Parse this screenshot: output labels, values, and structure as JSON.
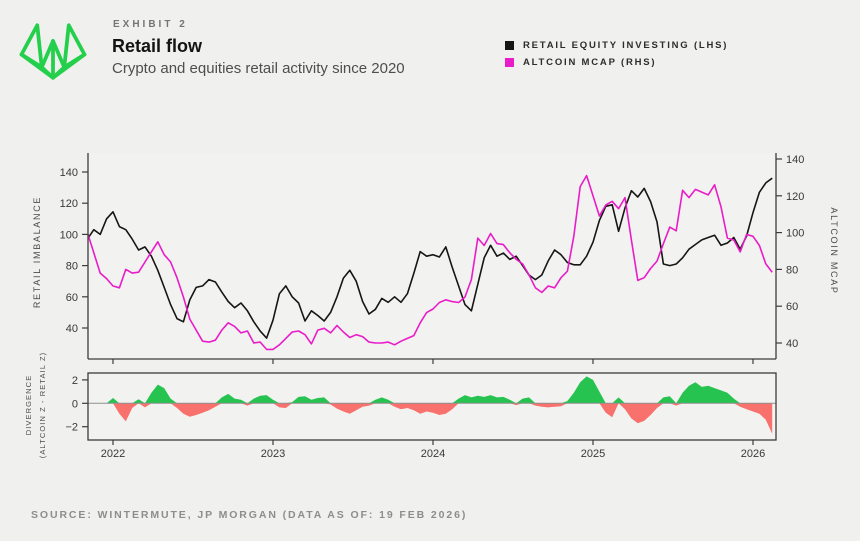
{
  "header": {
    "exhibit_label": "EXHIBIT 2",
    "title": "Retail flow",
    "subtitle": "Crypto and equities retail activity since 2020"
  },
  "legend": [
    {
      "label": "RETAIL EQUITY INVESTING (LHS)",
      "color": "#161616"
    },
    {
      "label": "ALTCOIN MCAP (RHS)",
      "color": "#e91cc9"
    }
  ],
  "source": "SOURCE: WINTERMUTE, JP MORGAN (DATA AS OF: 19 FEB 2026)",
  "logo_color": "#24d04b",
  "chart_data": [
    {
      "type": "line",
      "panel": "main",
      "x_start": 2021.84,
      "x_step": 0.04,
      "x_range": [
        2021.84,
        2026.14
      ],
      "x_ticks": [
        2022,
        2023,
        2024,
        2025,
        2026
      ],
      "left_axis": {
        "label": "RETAIL IMBALANCE",
        "ticks": [
          40,
          60,
          80,
          100,
          120,
          140
        ],
        "range": [
          22,
          152
        ]
      },
      "right_axis": {
        "label": "ALTCOIN MCAP",
        "ticks": [
          40,
          60,
          80,
          100,
          120,
          140
        ],
        "range": [
          31,
          143
        ]
      },
      "series": [
        {
          "name": "RETAIL EQUITY INVESTING (LHS)",
          "axis": "left",
          "color": "#161616",
          "values": [
            97,
            103,
            100,
            110,
            114.5,
            105,
            103,
            97,
            90,
            92,
            86,
            77,
            66,
            55,
            46,
            44,
            58,
            66,
            67,
            71,
            69.5,
            63,
            57,
            53,
            56,
            51,
            44,
            38,
            33.5,
            45,
            62,
            67,
            60,
            56,
            44.5,
            51,
            48,
            44.5,
            50,
            60,
            72,
            77,
            70,
            57,
            49,
            52,
            59,
            56.5,
            60,
            56.5,
            62,
            75,
            89,
            86,
            87,
            85.5,
            92,
            79,
            67,
            55,
            51,
            68,
            85,
            93,
            86,
            88,
            84,
            86,
            80,
            74,
            71,
            74,
            83,
            90,
            87,
            82,
            80.5,
            80.5,
            86,
            95,
            109,
            118,
            119,
            102,
            117,
            128,
            124,
            129.5,
            121,
            108,
            81,
            80,
            81,
            85,
            90.5,
            93.5,
            96.5,
            98,
            99.5,
            93,
            94.5,
            98,
            90.5,
            99,
            114,
            127,
            133,
            136
          ]
        },
        {
          "name": "ALTCOIN MCAP (RHS)",
          "axis": "right",
          "color": "#e91cc9",
          "values": [
            100,
            89,
            78,
            75,
            71,
            70,
            80,
            78,
            78.5,
            84,
            89.5,
            95,
            88,
            84,
            75.5,
            65,
            53,
            47,
            41,
            40.5,
            41.5,
            47,
            51,
            49,
            45.5,
            46.5,
            40,
            40.5,
            36.5,
            36.5,
            39,
            42.5,
            46,
            46.5,
            44.5,
            39.5,
            47,
            48,
            45.5,
            49.5,
            46,
            43,
            44.5,
            43.5,
            40.5,
            40,
            40,
            40.5,
            39,
            41,
            42.5,
            44,
            51,
            56.5,
            58.5,
            62,
            63.5,
            62.5,
            62,
            65,
            74.5,
            97,
            93,
            99.5,
            94,
            93.5,
            89,
            85.5,
            83,
            77,
            70,
            67.5,
            71,
            70,
            75.5,
            79,
            98,
            125,
            131,
            120,
            109,
            115,
            117,
            113,
            119,
            96,
            74,
            75.5,
            80.5,
            84.5,
            94,
            103,
            101,
            123,
            119,
            123.5,
            122,
            120.5,
            126,
            114,
            97,
            96,
            89.5,
            99,
            98,
            93,
            83,
            78.5
          ]
        }
      ]
    },
    {
      "type": "area",
      "panel": "divergence",
      "x_start": 2021.84,
      "x_step": 0.04,
      "x_ticks": [
        2022,
        2023,
        2024,
        2025,
        2026
      ],
      "axis": {
        "label_lines": [
          "DIVERGENCE",
          "(ALTCOIN Z - RETAIL Z)"
        ],
        "ticks": [
          2,
          0,
          -2
        ],
        "range": [
          -3.1,
          2.6
        ]
      },
      "positive_color": "#27c351",
      "negative_color": "#f8716c",
      "values": [
        0,
        0,
        0,
        0,
        0.45,
        -0.9,
        -1.55,
        -0.4,
        0.35,
        -0.35,
        0.9,
        1.6,
        1.3,
        0.4,
        -0.4,
        -0.9,
        -1.15,
        -1.0,
        -0.8,
        -0.6,
        -0.3,
        0.5,
        0.8,
        0.4,
        0.3,
        -0.2,
        0.4,
        0.65,
        0.7,
        0.3,
        -0.35,
        -0.4,
        0.1,
        0.55,
        0.6,
        0.3,
        0.45,
        0.5,
        -0.1,
        -0.45,
        -0.7,
        -0.9,
        -0.6,
        -0.3,
        -0.2,
        0.3,
        0.5,
        0.3,
        -0.3,
        -0.5,
        -0.4,
        -0.6,
        -0.9,
        -0.7,
        -0.8,
        -1.0,
        -0.9,
        -0.5,
        0.4,
        0.7,
        0.5,
        0.65,
        0.55,
        0.7,
        0.5,
        0.55,
        0.3,
        -0.15,
        0.4,
        0.5,
        -0.2,
        -0.3,
        -0.35,
        -0.3,
        -0.25,
        0.2,
        0.9,
        1.8,
        2.3,
        2.0,
        1.0,
        -0.8,
        -1.2,
        0.5,
        -0.5,
        -1.3,
        -1.7,
        -1.5,
        -1.0,
        -0.4,
        0.5,
        0.6,
        -0.2,
        0.9,
        1.5,
        1.8,
        1.4,
        1.5,
        1.3,
        1.1,
        0.9,
        0.4,
        -0.3,
        -0.5,
        -0.7,
        -0.9,
        -1.4,
        -2.6
      ]
    }
  ]
}
